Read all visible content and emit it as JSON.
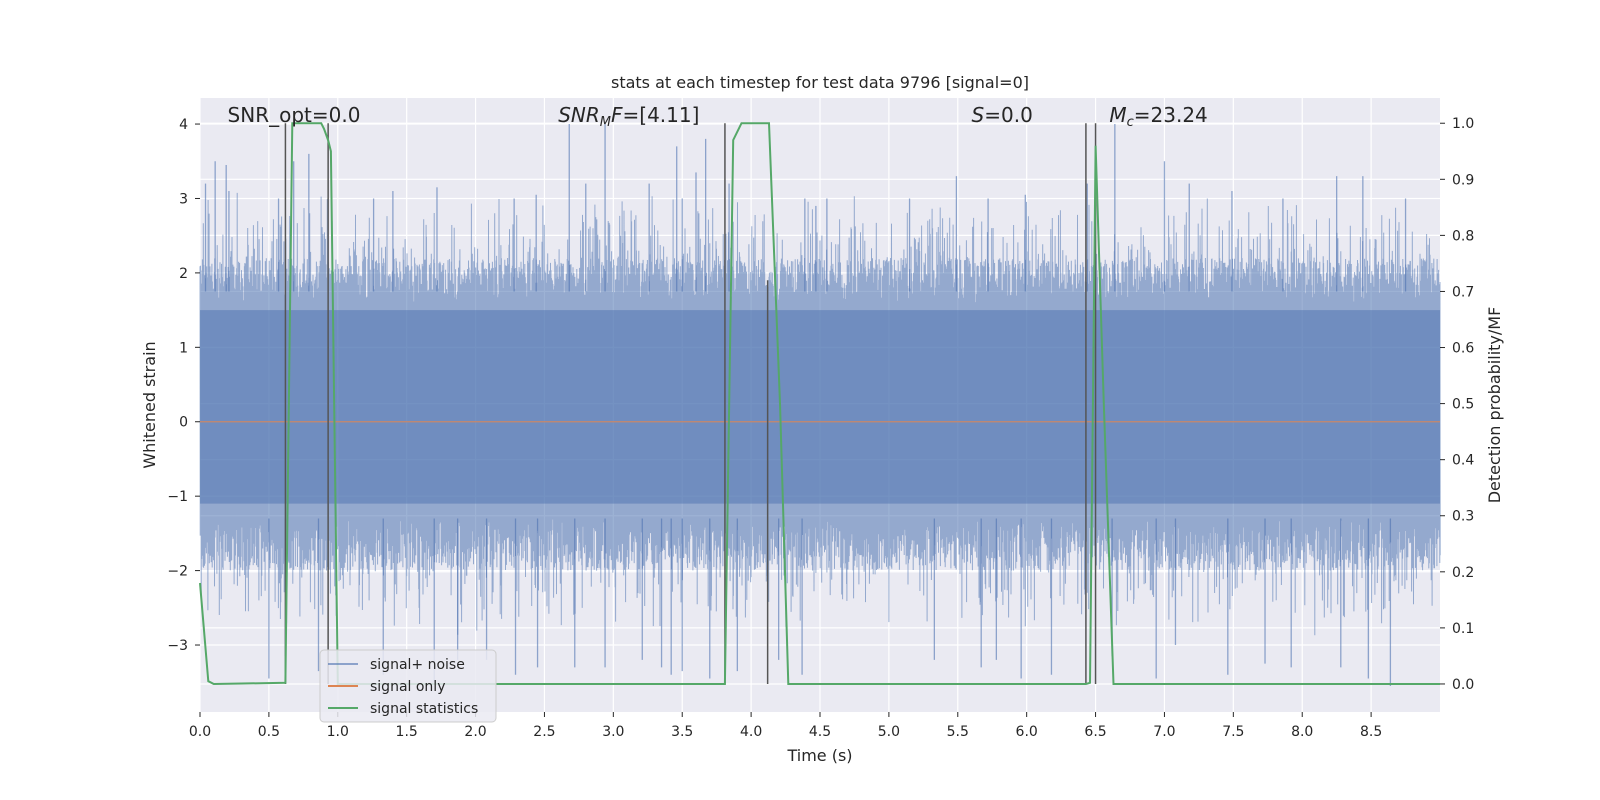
{
  "chart_data": {
    "type": "line",
    "title": "stats at each timestep for test data 9796 [signal=0]",
    "xlabel": "Time (s)",
    "ylabel": "Whitened strain",
    "ylabel_right": "Detection probability/MF",
    "xlim": [
      0.0,
      9.0
    ],
    "ylim": [
      -3.9,
      4.35
    ],
    "ylim_right": [
      -0.05,
      1.045
    ],
    "x_ticks": [
      0.0,
      0.5,
      1.0,
      1.5,
      2.0,
      2.5,
      3.0,
      3.5,
      4.0,
      4.5,
      5.0,
      5.5,
      6.0,
      6.5,
      7.0,
      7.5,
      8.0,
      8.5
    ],
    "x_tick_labels": [
      "0.0",
      "0.5",
      "1.0",
      "1.5",
      "2.0",
      "2.5",
      "3.0",
      "3.5",
      "4.0",
      "4.5",
      "5.0",
      "5.5",
      "6.0",
      "6.5",
      "7.0",
      "7.5",
      "8.0",
      "8.5"
    ],
    "y_ticks": [
      -3,
      -2,
      -1,
      0,
      1,
      2,
      3,
      4
    ],
    "y_tick_labels": [
      "−3",
      "−2",
      "−1",
      "0",
      "1",
      "2",
      "3",
      "4"
    ],
    "y_right_ticks": [
      0.0,
      0.1,
      0.2,
      0.3,
      0.4,
      0.5,
      0.6,
      0.7,
      0.8,
      0.9,
      1.0
    ],
    "y_right_tick_labels": [
      "0.0",
      "0.1",
      "0.2",
      "0.3",
      "0.4",
      "0.5",
      "0.6",
      "0.7",
      "0.8",
      "0.9",
      "1.0"
    ],
    "grid": true,
    "legend_position": "lower-left",
    "annotations": [
      {
        "id": "snr-opt",
        "html": "SNR_opt=0.0",
        "x": 0.2
      },
      {
        "id": "snr-mf",
        "html": "<tspan font-style='italic'>SNR</tspan><tspan font-style='italic' font-size='13' dy='4'>M</tspan><tspan font-style='italic' dy='-4'>F</tspan>=[4.11]",
        "x": 2.6
      },
      {
        "id": "s",
        "html": "<tspan font-style='italic'>S</tspan>=0.0",
        "x": 5.6
      },
      {
        "id": "mc",
        "html": "<tspan font-style='italic'>M</tspan><tspan font-style='italic' font-size='13' dy='4'>c</tspan><tspan dy='-4'>=23.24</tspan>",
        "x": 6.6
      }
    ],
    "annotation_y": 4.0,
    "series": [
      {
        "name": "signal+ noise",
        "color": "#4c72b0",
        "opacity": 0.5,
        "kind": "noise",
        "envelope": {
          "upper": 1.75,
          "lower": -1.3
        },
        "spikes_x": [
          0.04,
          0.11,
          0.19,
          0.21,
          0.57,
          0.68,
          0.79,
          1.26,
          1.4,
          1.72,
          2.28,
          2.44,
          2.68,
          2.8,
          2.94,
          3.26,
          3.46,
          3.5,
          3.6,
          3.67,
          3.84,
          4.39,
          4.47,
          4.55,
          5.15,
          5.49,
          5.72,
          5.99,
          6.44,
          6.64,
          7.0,
          7.18,
          7.49,
          7.86,
          8.25,
          8.44,
          8.75
        ],
        "spikes_top": [
          3.2,
          3.5,
          3.45,
          3.1,
          3.0,
          3.5,
          3.6,
          3.0,
          3.1,
          3.15,
          3.0,
          3.05,
          4.0,
          3.2,
          4.0,
          3.2,
          3.7,
          3.0,
          3.35,
          3.8,
          3.2,
          3.0,
          2.9,
          3.0,
          3.0,
          3.3,
          3.0,
          3.05,
          3.2,
          4.0,
          3.5,
          3.2,
          3.1,
          3.0,
          3.3,
          3.3,
          3.0
        ],
        "dips_x": [
          0.5,
          0.62,
          0.86,
          1.33,
          1.7,
          1.87,
          2.08,
          2.29,
          2.45,
          2.72,
          2.94,
          3.21,
          3.35,
          3.42,
          3.5,
          3.7,
          3.9,
          4.2,
          4.37,
          5.33,
          5.67,
          5.78,
          5.96,
          6.18,
          6.62,
          6.94,
          7.08,
          7.46,
          7.73,
          7.92,
          8.28,
          8.48,
          8.64
        ],
        "dips_bottom": [
          -3.45,
          -3.15,
          -3.35,
          -3.4,
          -3.5,
          -3.2,
          -3.2,
          -3.4,
          -3.3,
          -3.3,
          -3.3,
          -3.2,
          -3.3,
          -3.4,
          -3.35,
          -3.45,
          -3.35,
          -3.2,
          -3.4,
          -3.2,
          -3.3,
          -3.2,
          -3.45,
          -3.4,
          -3.15,
          -3.45,
          -3.0,
          -3.4,
          -3.25,
          -3.3,
          -3.3,
          -3.45,
          -3.55
        ]
      },
      {
        "name": "signal only",
        "color": "#dd8452",
        "kind": "flat",
        "y": 0.0
      },
      {
        "name": "signal statistics",
        "color": "#55a868",
        "axis": "right",
        "x": [
          0.0,
          0.06,
          0.1,
          0.62,
          0.67,
          0.74,
          0.88,
          0.9,
          0.93,
          0.95,
          1.0,
          3.81,
          3.87,
          3.93,
          4.13,
          4.21,
          4.27,
          6.43,
          6.46,
          6.5,
          6.56,
          6.63,
          9.0
        ],
        "y": [
          0.18,
          0.005,
          0.0,
          0.002,
          1.0,
          1.0,
          1.0,
          0.99,
          0.97,
          0.95,
          0.0,
          0.0,
          0.97,
          1.0,
          1.0,
          0.5,
          0.0,
          0.0,
          0.002,
          0.96,
          0.5,
          0.0,
          0.0
        ]
      }
    ],
    "marker_lines": {
      "color": "#555555",
      "x": [
        0.62,
        0.93,
        3.81,
        4.12,
        6.43,
        6.5
      ],
      "y_top": [
        1.0,
        1.0,
        1.0,
        0.72,
        1.0,
        1.0
      ],
      "y_bottom": [
        0.0,
        0.0,
        0.0,
        0.0,
        0.0,
        0.0
      ]
    },
    "legend": [
      "signal+ noise",
      "signal only",
      "signal statistics"
    ]
  }
}
